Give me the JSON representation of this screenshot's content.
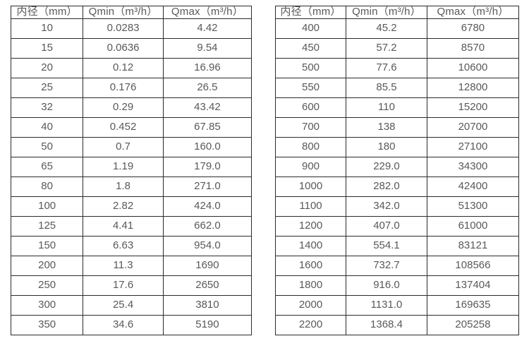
{
  "page": {
    "background_color": "#ffffff",
    "border_color": "#2b2b2b",
    "text_color": "#595959"
  },
  "chart_data": [
    {
      "type": "table",
      "title": "",
      "headers": [
        "内径（mm）",
        "Qmin（m³/h）",
        "Qmax（m³/h）"
      ],
      "rows": [
        [
          "10",
          "0.0283",
          "4.42"
        ],
        [
          "15",
          "0.0636",
          "9.54"
        ],
        [
          "20",
          "0.12",
          "16.96"
        ],
        [
          "25",
          "0.176",
          "26.5"
        ],
        [
          "32",
          "0.29",
          "43.42"
        ],
        [
          "40",
          "0.452",
          "67.85"
        ],
        [
          "50",
          "0.7",
          "160.0"
        ],
        [
          "65",
          "1.19",
          "179.0"
        ],
        [
          "80",
          "1.8",
          "271.0"
        ],
        [
          "100",
          "2.82",
          "424.0"
        ],
        [
          "125",
          "4.41",
          "662.0"
        ],
        [
          "150",
          "6.63",
          "954.0"
        ],
        [
          "200",
          "11.3",
          "1690"
        ],
        [
          "250",
          "17.6",
          "2650"
        ],
        [
          "300",
          "25.4",
          "3810"
        ],
        [
          "350",
          "34.6",
          "5190"
        ]
      ]
    },
    {
      "type": "table",
      "title": "",
      "headers": [
        "内径（mm）",
        "Qmin（m³/h）",
        "Qmax（m³/h）"
      ],
      "rows": [
        [
          "400",
          "45.2",
          "6780"
        ],
        [
          "450",
          "57.2",
          "8570"
        ],
        [
          "500",
          "77.6",
          "10600"
        ],
        [
          "550",
          "85.5",
          "12800"
        ],
        [
          "600",
          "110",
          "15200"
        ],
        [
          "700",
          "138",
          "20700"
        ],
        [
          "800",
          "180",
          "27100"
        ],
        [
          "900",
          "229.0",
          "34300"
        ],
        [
          "1000",
          "282.0",
          "42400"
        ],
        [
          "1100",
          "342.0",
          "51300"
        ],
        [
          "1200",
          "407.0",
          "61000"
        ],
        [
          "1400",
          "554.1",
          "83121"
        ],
        [
          "1600",
          "732.7",
          "108566"
        ],
        [
          "1800",
          "916.0",
          "137404"
        ],
        [
          "2000",
          "1131.0",
          "169635"
        ],
        [
          "2200",
          "1368.4",
          "205258"
        ]
      ]
    }
  ]
}
